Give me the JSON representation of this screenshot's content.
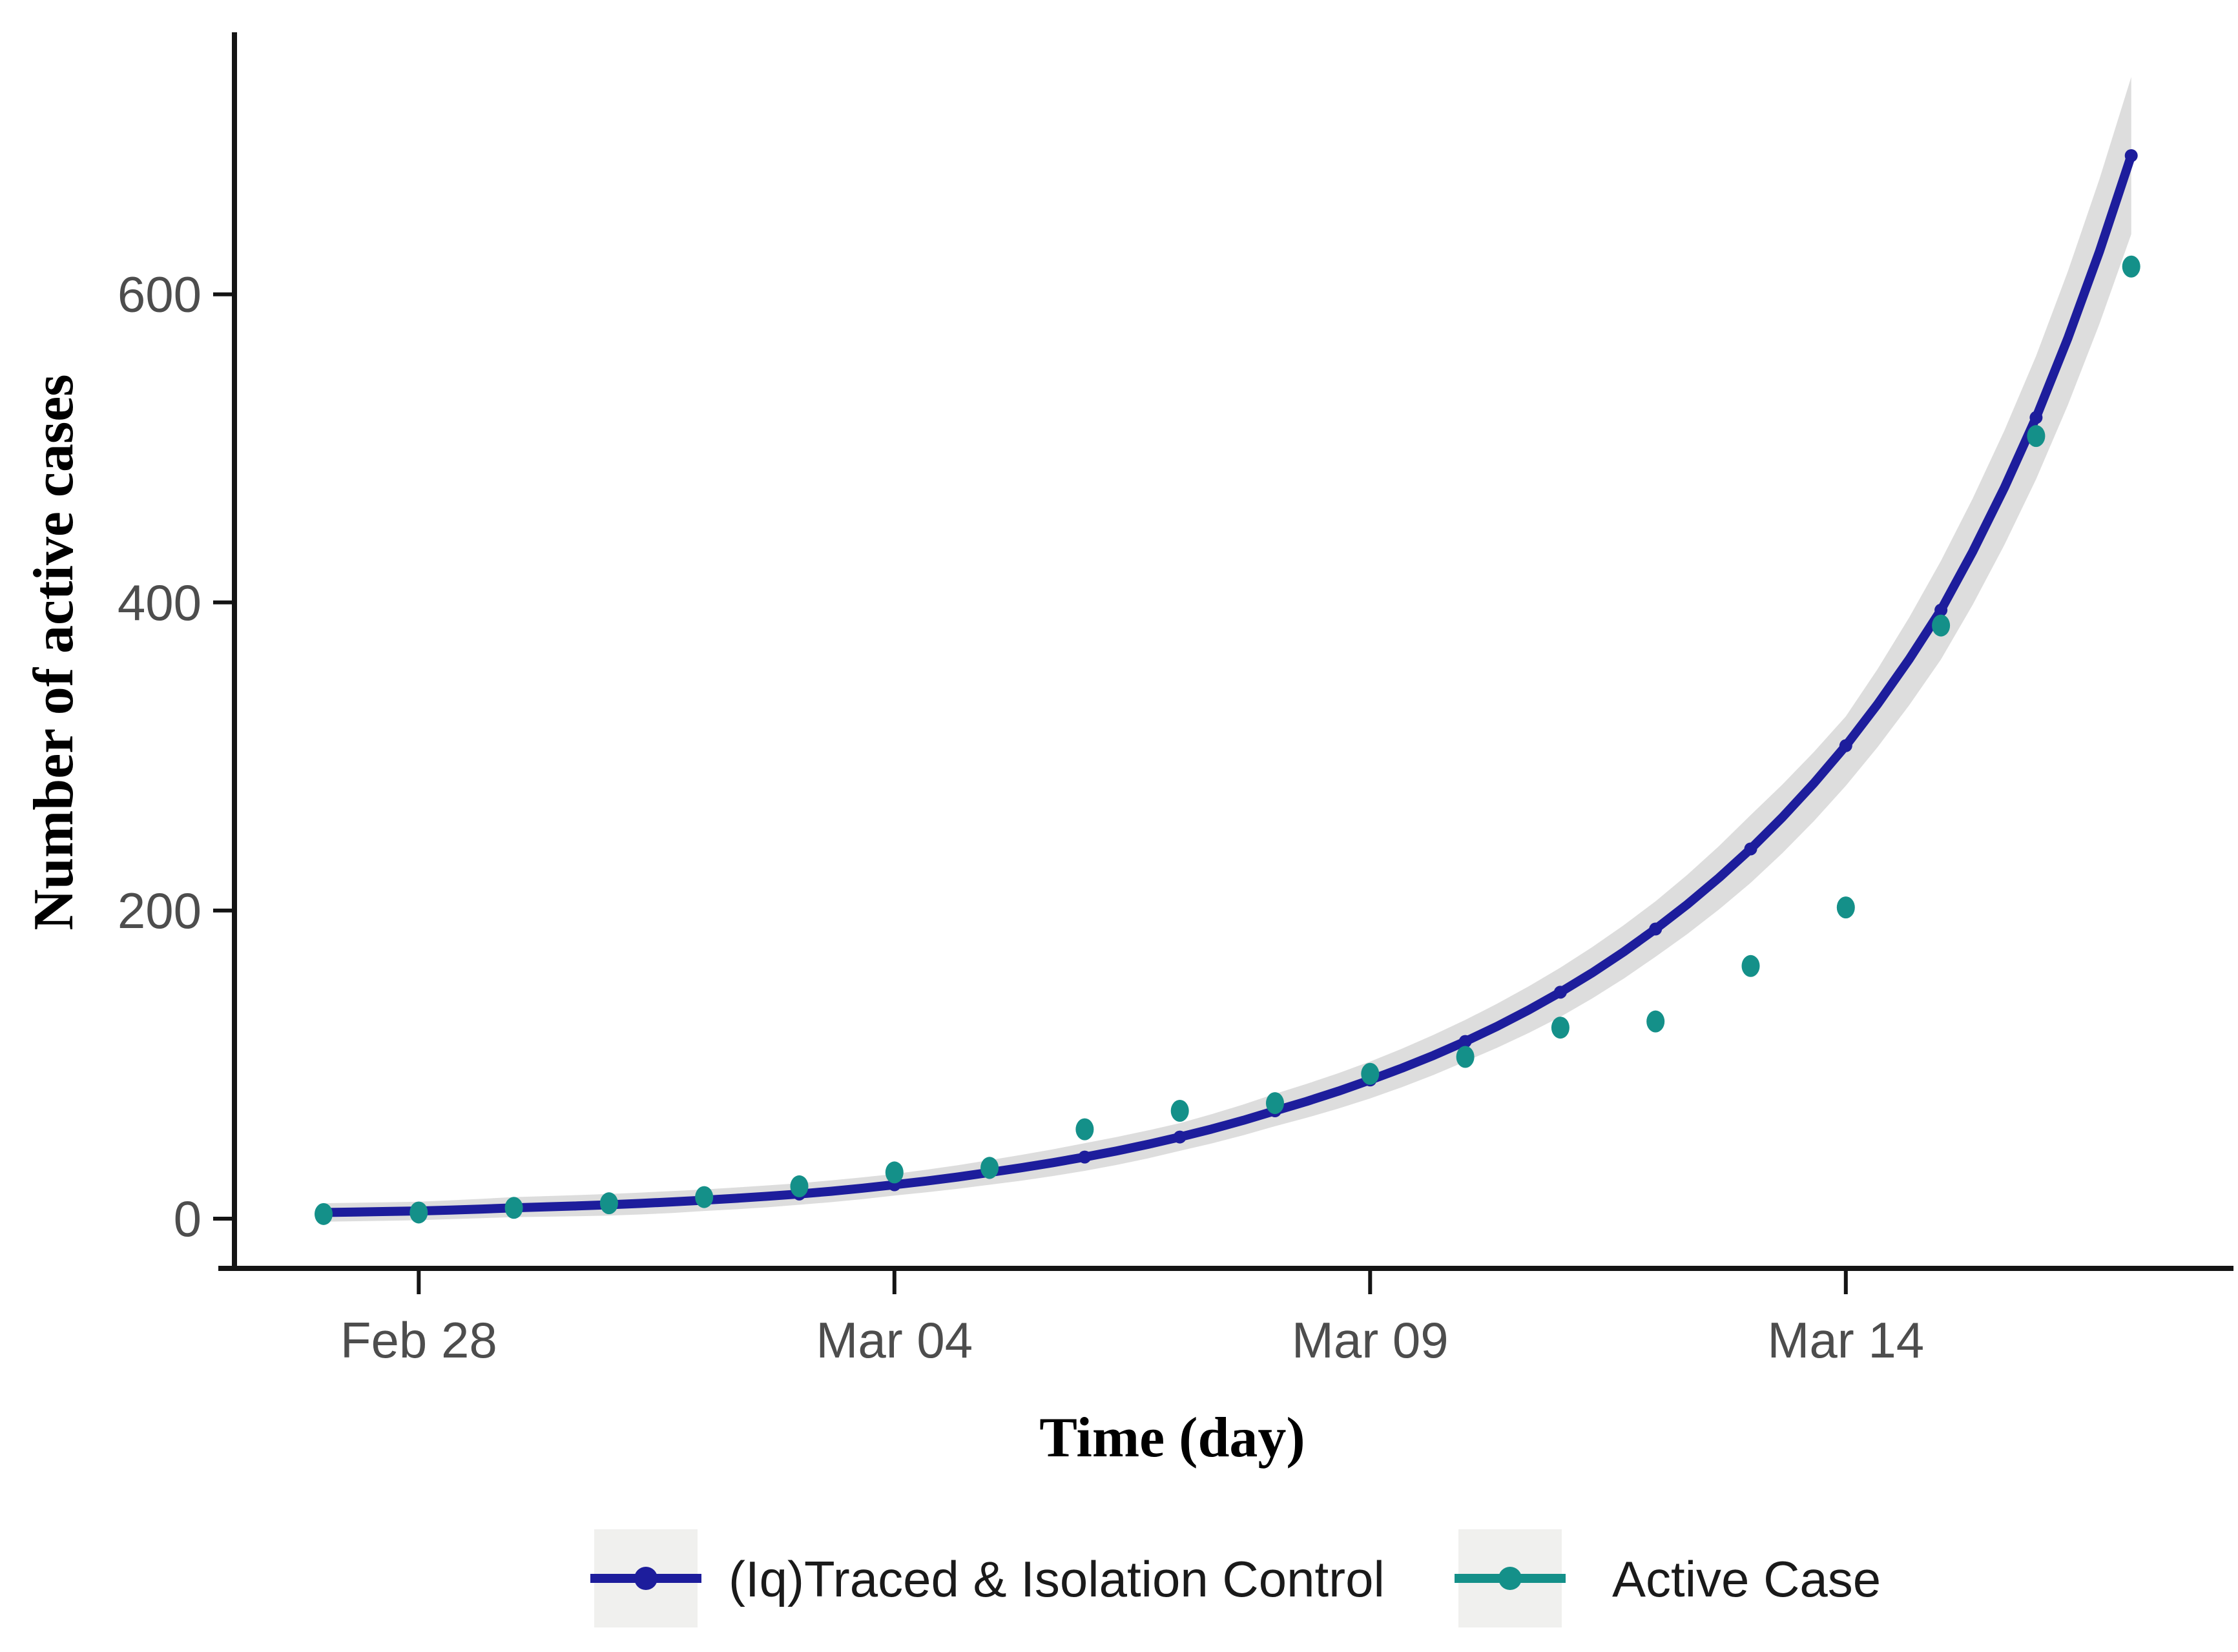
{
  "figure": {
    "y_axis": {
      "title": "Number of active cases",
      "tick_labels": [
        "0",
        "200",
        "400",
        "600"
      ],
      "tick_values": [
        0,
        200,
        400,
        600
      ]
    },
    "x_axis": {
      "title": "Time (day)",
      "tick_labels": [
        "Feb 28",
        "Mar 04",
        "Mar 09",
        "Mar 14"
      ]
    },
    "legend": [
      {
        "label": "(Iq)Traced & Isolation Control",
        "color": "#1d1d9c",
        "key_bg": "#f0f0ee"
      },
      {
        "label": "Active Case",
        "color": "#149089",
        "key_bg": "#f0f0ee"
      }
    ]
  },
  "chart_data": {
    "type": "line",
    "title": "",
    "xlabel": "Time (day)",
    "ylabel": "Number of active cases",
    "x": [
      "Feb 27",
      "Feb 28",
      "Feb 29",
      "Mar 01",
      "Mar 02",
      "Mar 03",
      "Mar 04",
      "Mar 05",
      "Mar 06",
      "Mar 07",
      "Mar 08",
      "Mar 09",
      "Mar 10",
      "Mar 11",
      "Mar 12",
      "Mar 13",
      "Mar 14",
      "Mar 15",
      "Mar 16",
      "Mar 17"
    ],
    "x_tick_labels": [
      "Feb 28",
      "Mar 04",
      "Mar 09",
      "Mar 14"
    ],
    "y_ticks": [
      0,
      200,
      400,
      600
    ],
    "ylim": [
      -35,
      780
    ],
    "grid": false,
    "legend_position": "bottom",
    "series": [
      {
        "name": "(Iq)Traced & Isolation Control",
        "type": "line",
        "color": "#1d1d9c",
        "has_confidence_band": true,
        "ci_color": "#d9d9d9",
        "values": [
          4,
          5,
          7,
          9,
          12,
          16,
          22,
          30,
          40,
          53,
          70,
          90,
          115,
          147,
          188,
          240,
          307,
          395,
          520,
          690
        ],
        "ci_upper": [
          10,
          11,
          14,
          16,
          19,
          23,
          29,
          38,
          49,
          62,
          81,
          102,
          129,
          163,
          206,
          262,
          326,
          427,
          560,
          741
        ],
        "ci_lower": [
          -2,
          -1,
          1,
          2,
          5,
          9,
          15,
          22,
          31,
          44,
          60,
          78,
          102,
          131,
          170,
          218,
          281,
          363,
          480,
          639
        ]
      },
      {
        "name": "Active Case",
        "type": "scatter",
        "color": "#149089",
        "values": [
          3,
          4,
          7,
          10,
          14,
          21,
          30,
          33,
          58,
          70,
          75,
          94,
          105,
          124,
          128,
          164,
          202,
          385,
          508,
          618
        ]
      }
    ]
  }
}
